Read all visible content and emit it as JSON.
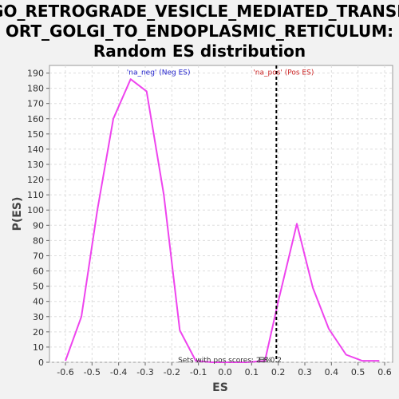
{
  "chart_data": {
    "type": "line",
    "title_lines": [
      "GO_RETROGRADE_VESICLE_MEDIATED_TRANSP",
      "ORT_GOLGI_TO_ENDOPLASMIC_RETICULUM:",
      "Random ES distribution"
    ],
    "xlabel": "ES",
    "ylabel": "P(ES)",
    "xlim": [
      -0.66,
      0.63
    ],
    "ylim": [
      0,
      195
    ],
    "x_ticks": [
      -0.6,
      -0.5,
      -0.4,
      -0.3,
      -0.2,
      -0.1,
      0.0,
      0.1,
      0.2,
      0.3,
      0.4,
      0.5,
      0.6
    ],
    "x_tick_labels": [
      "-0.6",
      "-0.5",
      "-0.4",
      "-0.3",
      "-0.2",
      "-0.1",
      "0.0",
      "0.1",
      "0.2",
      "0.3",
      "0.4",
      "0.5",
      "0.6"
    ],
    "y_ticks": [
      0,
      10,
      20,
      30,
      40,
      50,
      60,
      70,
      80,
      90,
      100,
      110,
      120,
      130,
      140,
      150,
      160,
      170,
      180,
      190
    ],
    "grid": true,
    "series": [
      {
        "color": "#ee44ee",
        "x": [
          -0.6,
          -0.54,
          -0.48,
          -0.42,
          -0.355,
          -0.295,
          -0.23,
          -0.17,
          -0.11,
          -0.05,
          0.01,
          0.08,
          0.15,
          0.2,
          0.27,
          0.33,
          0.39,
          0.455,
          0.515,
          0.58
        ],
        "y": [
          1,
          30,
          100,
          160,
          186,
          178,
          110,
          21,
          1,
          0,
          0,
          0,
          1,
          40,
          91,
          49,
          22,
          5,
          1,
          1
        ]
      }
    ],
    "vline": {
      "x": 0.193,
      "style": "dashed",
      "color": "#000000"
    },
    "annotations": [
      {
        "text": "'na_neg' (Neg ES)",
        "x": -0.25,
        "y": 190,
        "color": "#2222cc"
      },
      {
        "text": "'na_pos' (Pos ES)",
        "x": 0.22,
        "y": 190,
        "color": "#cc2222"
      },
      {
        "text": "Sets with pos scores: 23%",
        "x": 0.0,
        "y": 1,
        "color": "#333333"
      },
      {
        "text": "ES 0.2",
        "x": 0.17,
        "y": 1,
        "color": "#333333"
      }
    ]
  }
}
